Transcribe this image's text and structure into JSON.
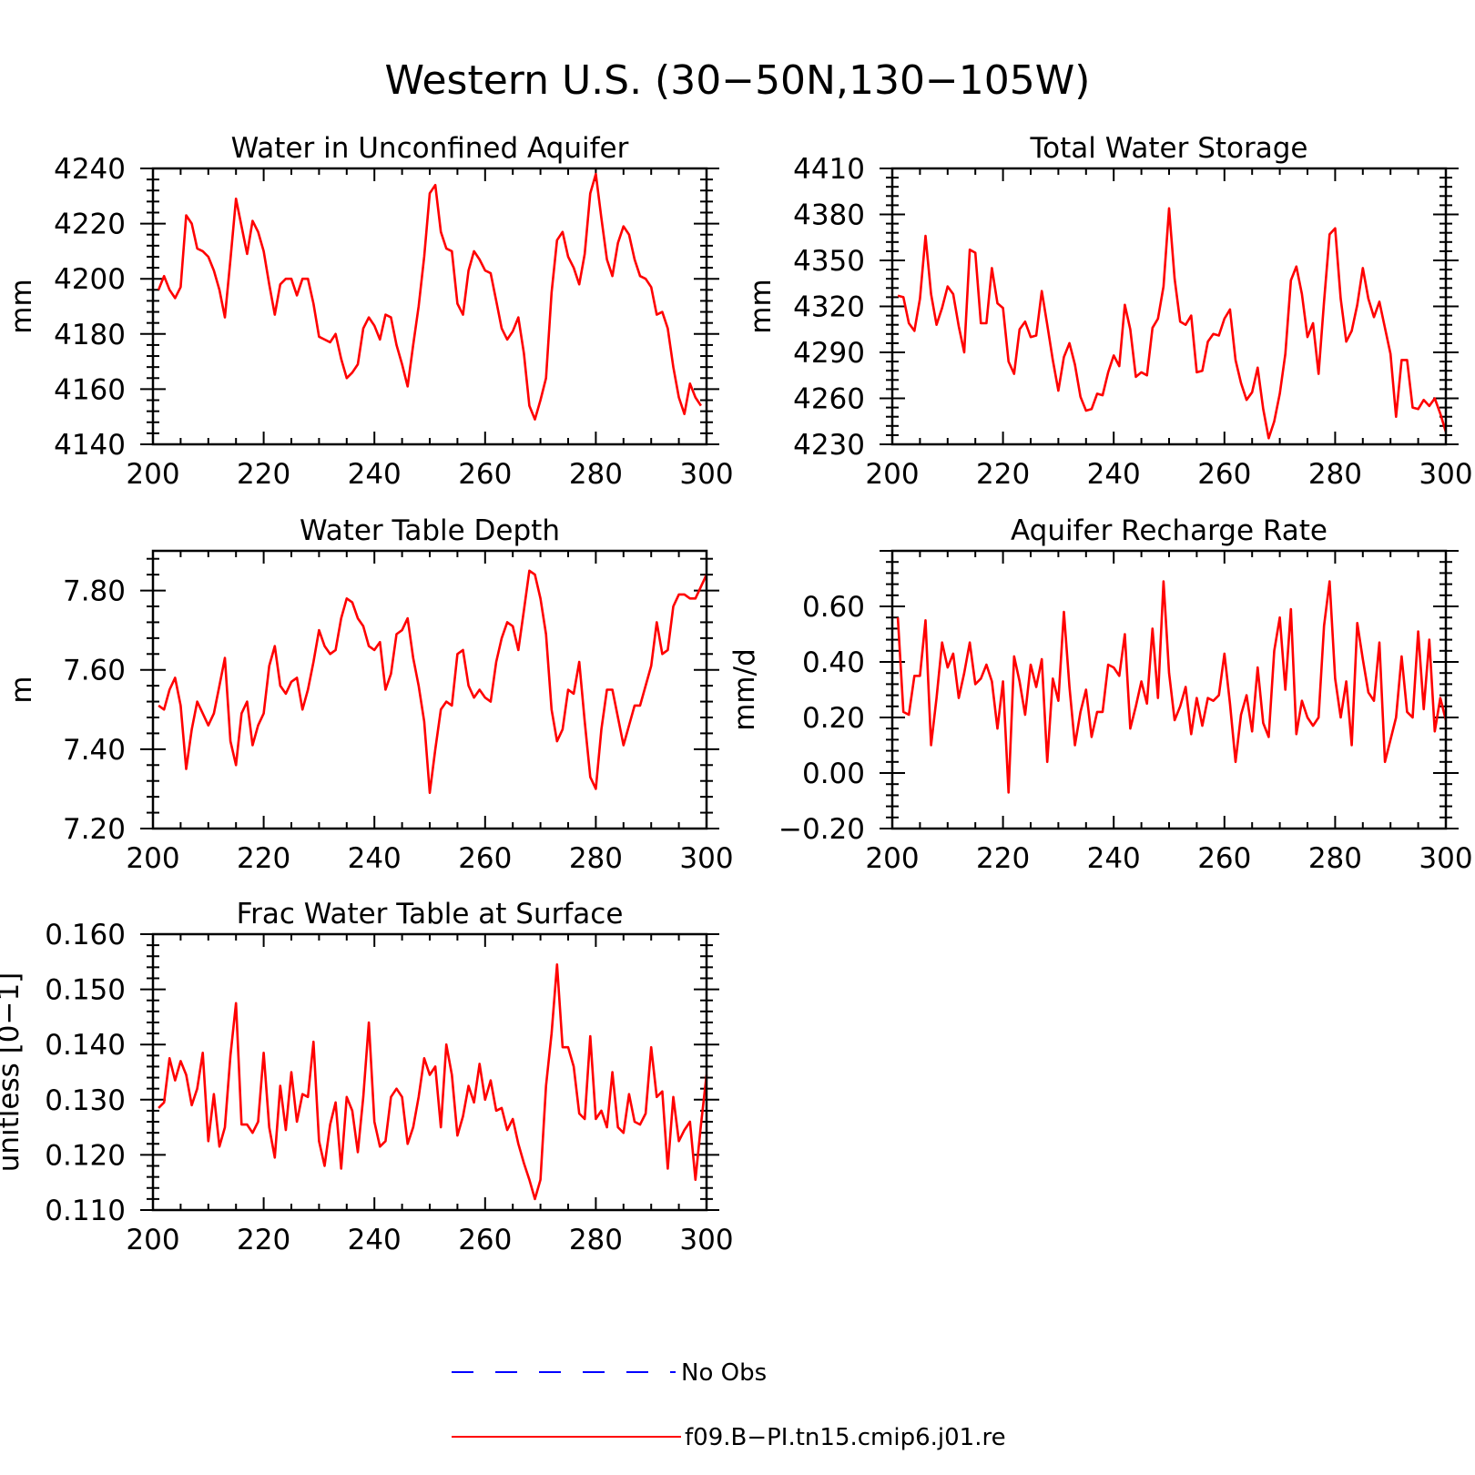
{
  "figure": {
    "title": "Western U.S. (30−50N,130−105W)"
  },
  "legend": {
    "position": "bottom-center",
    "entries": [
      {
        "label": "No Obs",
        "color": "#0000ff",
        "style": "dashed"
      },
      {
        "label": "f09.B−PI.tn15.cmip6.j01.re",
        "color": "#ff0000",
        "style": "solid"
      }
    ]
  },
  "chart_data": [
    {
      "type": "line",
      "title": "Water in Unconfined Aquifer",
      "ylabel": "mm",
      "xlim": [
        200,
        300
      ],
      "ylim": [
        4140,
        4240
      ],
      "xticks": [
        "200",
        "220",
        "240",
        "260",
        "280",
        "300"
      ],
      "yticks": [
        "4140",
        "4160",
        "4180",
        "4200",
        "4220",
        "4240"
      ],
      "color": "#ff0000",
      "x_start": 201,
      "values": [
        4196,
        4201,
        4196,
        4193,
        4197,
        4223,
        4220,
        4211,
        4210,
        4208,
        4203,
        4196,
        4186,
        4207,
        4229,
        4219,
        4209,
        4221,
        4217,
        4210,
        4198,
        4187,
        4198,
        4200,
        4200,
        4194,
        4200,
        4200,
        4191,
        4179,
        4178,
        4177,
        4180,
        4171,
        4164,
        4166,
        4169,
        4182,
        4186,
        4183,
        4178,
        4187,
        4186,
        4176,
        4169,
        4161,
        4176,
        4190,
        4208,
        4231,
        4234,
        4217,
        4211,
        4210,
        4191,
        4187,
        4203,
        4210,
        4207,
        4203,
        4202,
        4192,
        4182,
        4178,
        4181,
        4186,
        4173,
        4154,
        4149,
        4156,
        4164,
        4195,
        4214,
        4217,
        4208,
        4204,
        4198,
        4209,
        4231,
        4238,
        4222,
        4207,
        4201,
        4213,
        4219,
        4216,
        4207,
        4201,
        4200,
        4197,
        4187,
        4188,
        4182,
        4168,
        4157,
        4151,
        4162,
        4157,
        4154
      ]
    },
    {
      "type": "line",
      "title": "Total Water Storage",
      "ylabel": "mm",
      "xlim": [
        200,
        300
      ],
      "ylim": [
        4230,
        4410
      ],
      "xticks": [
        "200",
        "220",
        "240",
        "260",
        "280",
        "300"
      ],
      "yticks": [
        "4230",
        "4260",
        "4290",
        "4320",
        "4350",
        "4380",
        "4410"
      ],
      "color": "#ff0000",
      "x_start": 201,
      "values": [
        4327,
        4326,
        4309,
        4304,
        4325,
        4366,
        4328,
        4308,
        4319,
        4333,
        4328,
        4307,
        4290,
        4357,
        4355,
        4309,
        4309,
        4345,
        4322,
        4319,
        4284,
        4276,
        4305,
        4310,
        4300,
        4301,
        4330,
        4308,
        4285,
        4265,
        4287,
        4296,
        4282,
        4261,
        4252,
        4253,
        4263,
        4262,
        4277,
        4288,
        4281,
        4321,
        4305,
        4274,
        4277,
        4275,
        4306,
        4312,
        4333,
        4384,
        4338,
        4310,
        4308,
        4314,
        4277,
        4278,
        4297,
        4302,
        4301,
        4312,
        4318,
        4285,
        4270,
        4259,
        4264,
        4280,
        4253,
        4234,
        4245,
        4263,
        4289,
        4337,
        4346,
        4328,
        4300,
        4309,
        4276,
        4323,
        4367,
        4371,
        4325,
        4297,
        4304,
        4321,
        4345,
        4325,
        4313,
        4323,
        4306,
        4289,
        4248,
        4285,
        4285,
        4254,
        4253,
        4259,
        4255,
        4260,
        4250,
        4238
      ]
    },
    {
      "type": "line",
      "title": "Water Table Depth",
      "ylabel": "m",
      "xlim": [
        200,
        300
      ],
      "ylim": [
        7.2,
        7.9
      ],
      "xticks": [
        "200",
        "220",
        "240",
        "260",
        "280",
        "300"
      ],
      "yticks": [
        "7.20",
        "7.40",
        "7.60",
        "7.80"
      ],
      "color": "#ff0000",
      "x_start": 201,
      "values": [
        7.51,
        7.5,
        7.55,
        7.58,
        7.51,
        7.35,
        7.45,
        7.52,
        7.49,
        7.46,
        7.49,
        7.56,
        7.63,
        7.42,
        7.36,
        7.49,
        7.52,
        7.41,
        7.46,
        7.49,
        7.61,
        7.66,
        7.56,
        7.54,
        7.57,
        7.58,
        7.5,
        7.55,
        7.62,
        7.7,
        7.66,
        7.64,
        7.65,
        7.73,
        7.78,
        7.77,
        7.73,
        7.71,
        7.66,
        7.65,
        7.67,
        7.55,
        7.59,
        7.69,
        7.7,
        7.73,
        7.63,
        7.56,
        7.47,
        7.29,
        7.4,
        7.5,
        7.52,
        7.51,
        7.64,
        7.65,
        7.56,
        7.53,
        7.55,
        7.53,
        7.52,
        7.62,
        7.68,
        7.72,
        7.71,
        7.65,
        7.75,
        7.85,
        7.84,
        7.78,
        7.69,
        7.5,
        7.42,
        7.45,
        7.55,
        7.54,
        7.62,
        7.47,
        7.33,
        7.3,
        7.45,
        7.55,
        7.55,
        7.48,
        7.41,
        7.46,
        7.51,
        7.51,
        7.56,
        7.61,
        7.72,
        7.64,
        7.65,
        7.76,
        7.79,
        7.79,
        7.78,
        7.78,
        7.81,
        7.84
      ]
    },
    {
      "type": "line",
      "title": "Aquifer Recharge Rate",
      "ylabel": "mm/d",
      "xlim": [
        200,
        300
      ],
      "ylim": [
        -0.2,
        0.8
      ],
      "xticks": [
        "200",
        "220",
        "240",
        "260",
        "280",
        "300"
      ],
      "yticks": [
        "−0.20",
        "0.00",
        "0.20",
        "0.40",
        "0.60"
      ],
      "color": "#ff0000",
      "x_start": 201,
      "values": [
        0.56,
        0.22,
        0.21,
        0.35,
        0.35,
        0.55,
        0.1,
        0.27,
        0.47,
        0.38,
        0.43,
        0.27,
        0.36,
        0.47,
        0.32,
        0.34,
        0.39,
        0.33,
        0.16,
        0.33,
        -0.07,
        0.42,
        0.33,
        0.21,
        0.39,
        0.31,
        0.41,
        0.04,
        0.34,
        0.26,
        0.58,
        0.31,
        0.1,
        0.22,
        0.3,
        0.13,
        0.22,
        0.22,
        0.39,
        0.38,
        0.35,
        0.5,
        0.16,
        0.24,
        0.33,
        0.25,
        0.52,
        0.27,
        0.69,
        0.36,
        0.19,
        0.24,
        0.31,
        0.14,
        0.27,
        0.17,
        0.27,
        0.26,
        0.28,
        0.43,
        0.25,
        0.04,
        0.21,
        0.28,
        0.15,
        0.38,
        0.18,
        0.13,
        0.44,
        0.56,
        0.3,
        0.59,
        0.14,
        0.26,
        0.2,
        0.17,
        0.2,
        0.53,
        0.69,
        0.34,
        0.2,
        0.33,
        0.1,
        0.54,
        0.41,
        0.29,
        0.26,
        0.47,
        0.04,
        0.12,
        0.2,
        0.42,
        0.22,
        0.2,
        0.51,
        0.23,
        0.48,
        0.15,
        0.27,
        0.19
      ]
    },
    {
      "type": "line",
      "title": "Frac Water Table at Surface",
      "ylabel": "unitless [0−1]",
      "xlim": [
        200,
        300
      ],
      "ylim": [
        0.11,
        0.16
      ],
      "xticks": [
        "200",
        "220",
        "240",
        "260",
        "280",
        "300"
      ],
      "yticks": [
        "0.110",
        "0.120",
        "0.130",
        "0.140",
        "0.150",
        "0.160"
      ],
      "color": "#ff0000",
      "x_start": 201,
      "values": [
        0.1285,
        0.1295,
        0.1375,
        0.1335,
        0.137,
        0.1345,
        0.129,
        0.132,
        0.1385,
        0.1225,
        0.131,
        0.1215,
        0.125,
        0.138,
        0.1475,
        0.1255,
        0.1255,
        0.124,
        0.126,
        0.1385,
        0.125,
        0.1195,
        0.1325,
        0.1245,
        0.135,
        0.126,
        0.131,
        0.1305,
        0.1405,
        0.1225,
        0.118,
        0.1255,
        0.1295,
        0.1175,
        0.1305,
        0.128,
        0.1205,
        0.1305,
        0.144,
        0.126,
        0.1215,
        0.1225,
        0.1305,
        0.132,
        0.1305,
        0.122,
        0.125,
        0.1305,
        0.1375,
        0.1345,
        0.136,
        0.125,
        0.14,
        0.1345,
        0.1235,
        0.127,
        0.1325,
        0.1295,
        0.1365,
        0.13,
        0.1335,
        0.128,
        0.1285,
        0.1245,
        0.1265,
        0.122,
        0.1185,
        0.1155,
        0.112,
        0.1155,
        0.1325,
        0.142,
        0.1545,
        0.1395,
        0.1395,
        0.136,
        0.1275,
        0.1265,
        0.1415,
        0.1265,
        0.128,
        0.125,
        0.135,
        0.125,
        0.124,
        0.131,
        0.126,
        0.1255,
        0.1275,
        0.1395,
        0.1305,
        0.1315,
        0.1175,
        0.1305,
        0.1225,
        0.1245,
        0.126,
        0.1155,
        0.1255,
        0.1345
      ]
    }
  ]
}
